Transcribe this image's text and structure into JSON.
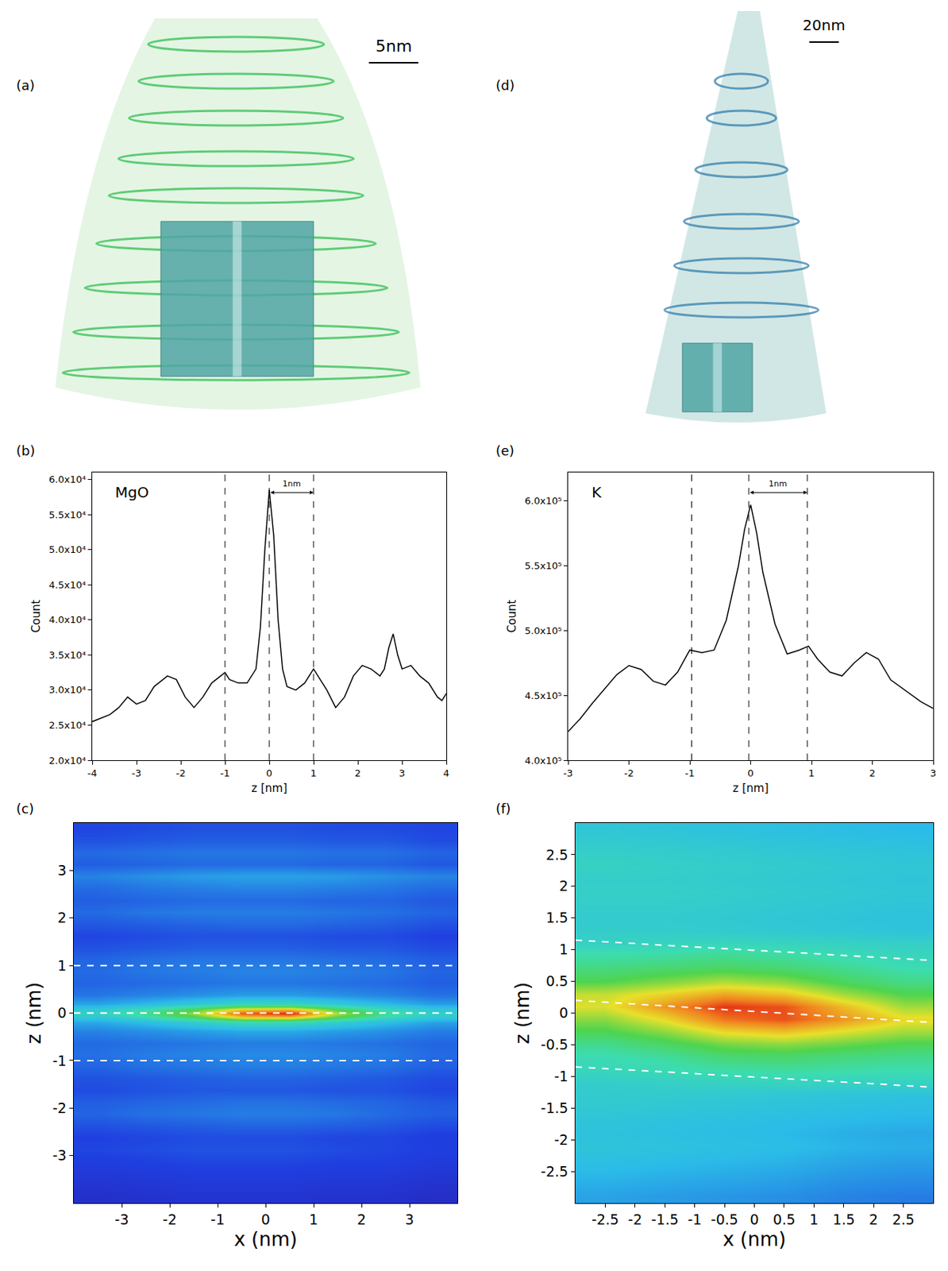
{
  "reconstructions": [
    {
      "label": "(a)",
      "scale_bar": "5nm"
    },
    {
      "label": "(d)",
      "scale_bar": "20nm"
    }
  ],
  "chart_data": [
    {
      "type": "line",
      "label": "(b)",
      "annotation": "MgO",
      "color": "#000000",
      "xlabel": "z [nm]",
      "ylabel": "Count",
      "x": [
        -4,
        -3.8,
        -3.6,
        -3.4,
        -3.2,
        -3.0,
        -2.8,
        -2.6,
        -2.5,
        -2.3,
        -2.1,
        -1.9,
        -1.7,
        -1.5,
        -1.3,
        -1.1,
        -1.0,
        -0.9,
        -0.7,
        -0.5,
        -0.3,
        -0.2,
        -0.1,
        0,
        0.1,
        0.2,
        0.3,
        0.4,
        0.6,
        0.8,
        1.0,
        1.1,
        1.3,
        1.5,
        1.7,
        1.9,
        2.1,
        2.3,
        2.5,
        2.6,
        2.7,
        2.8,
        2.9,
        3.0,
        3.2,
        3.4,
        3.6,
        3.8,
        3.9,
        4.0
      ],
      "values": [
        25500,
        26000,
        26500,
        27500,
        29000,
        28000,
        28500,
        30500,
        31000,
        32000,
        31500,
        29000,
        27500,
        29000,
        31000,
        32000,
        32500,
        31500,
        31000,
        31000,
        33000,
        39000,
        50000,
        58500,
        52000,
        40000,
        33000,
        30500,
        30000,
        31000,
        33000,
        32000,
        30000,
        27500,
        29000,
        32000,
        33500,
        33000,
        32000,
        33000,
        36000,
        38000,
        35000,
        33000,
        33500,
        32000,
        31000,
        29000,
        28500,
        29500
      ],
      "xlim": [
        -4,
        4
      ],
      "ylim": [
        20000,
        61000
      ],
      "xticks": [
        -4,
        -3,
        -2,
        -1,
        0,
        1,
        2,
        3,
        4
      ],
      "yticks": [
        {
          "value": 20000,
          "label": "2.0x10⁴"
        },
        {
          "value": 25000,
          "label": "2.5x10⁴"
        },
        {
          "value": 30000,
          "label": "3.0x10⁴"
        },
        {
          "value": 35000,
          "label": "3.5x10⁴"
        },
        {
          "value": 40000,
          "label": "4.0x10⁴"
        },
        {
          "value": 45000,
          "label": "4.5x10⁴"
        },
        {
          "value": 50000,
          "label": "5.0x10⁴"
        },
        {
          "value": 55000,
          "label": "5.5x10⁴"
        },
        {
          "value": 60000,
          "label": "6.0x10⁴"
        }
      ],
      "vlines": [
        -1,
        0,
        1
      ],
      "bracket": {
        "from": 0,
        "to": 1,
        "label": "1nm"
      }
    },
    {
      "type": "line",
      "label": "(e)",
      "annotation": "K",
      "color": "#000000",
      "xlabel": "z [nm]",
      "ylabel": "Count",
      "x": [
        -3,
        -2.8,
        -2.6,
        -2.4,
        -2.2,
        -2.0,
        -1.8,
        -1.6,
        -1.4,
        -1.2,
        -1.0,
        -0.8,
        -0.6,
        -0.4,
        -0.2,
        -0.1,
        0,
        0.1,
        0.2,
        0.4,
        0.6,
        0.8,
        0.95,
        1.1,
        1.3,
        1.5,
        1.7,
        1.9,
        2.1,
        2.3,
        2.6,
        2.8,
        3.0
      ],
      "values": [
        422000,
        432000,
        444000,
        455000,
        466000,
        473000,
        470000,
        461000,
        458000,
        468000,
        485000,
        483000,
        485000,
        508000,
        550000,
        578000,
        597000,
        575000,
        545000,
        505000,
        482000,
        485000,
        488000,
        478000,
        468000,
        465000,
        475000,
        483000,
        478000,
        462000,
        452000,
        445000,
        440000
      ],
      "xlim": [
        -3,
        3
      ],
      "ylim": [
        400000,
        622000
      ],
      "xticks": [
        -3,
        -2,
        -1,
        0,
        1,
        2,
        3
      ],
      "yticks": [
        {
          "value": 400000,
          "label": "4.0x10⁵"
        },
        {
          "value": 450000,
          "label": "4.5x10⁵"
        },
        {
          "value": 500000,
          "label": "5.0x10⁵"
        },
        {
          "value": 550000,
          "label": "5.5x10⁵"
        },
        {
          "value": 600000,
          "label": "6.0x10⁵"
        }
      ],
      "vlines": [
        -0.97,
        -0.03,
        0.93
      ],
      "bracket": {
        "from": -0.03,
        "to": 0.93,
        "label": "1nm"
      }
    },
    {
      "type": "heatmap",
      "label": "(c)",
      "xlabel": "x (nm)",
      "ylabel": "z (nm)",
      "x": [
        -3.5,
        -2.5,
        -1.5,
        -0.5,
        0.5,
        1.5,
        2.5,
        3.5
      ],
      "y": [
        -3.875,
        -3.625,
        -3.375,
        -3.125,
        -2.875,
        -2.625,
        -2.375,
        -2.125,
        -1.875,
        -1.625,
        -1.375,
        -1.125,
        -0.875,
        -0.625,
        -0.375,
        -0.2,
        -0.08,
        0,
        0.08,
        0.2,
        0.375,
        0.625,
        0.875,
        1.125,
        1.375,
        1.625,
        1.875,
        2.125,
        2.375,
        2.625,
        2.875,
        3.125,
        3.375,
        3.625,
        3.875
      ],
      "cells": [
        [
          0.08,
          0.09,
          0.1,
          0.1,
          0.1,
          0.09,
          0.09,
          0.07
        ],
        [
          0.1,
          0.11,
          0.12,
          0.12,
          0.12,
          0.11,
          0.11,
          0.09
        ],
        [
          0.12,
          0.13,
          0.14,
          0.14,
          0.14,
          0.13,
          0.13,
          0.11
        ],
        [
          0.14,
          0.15,
          0.16,
          0.16,
          0.16,
          0.15,
          0.15,
          0.13
        ],
        [
          0.16,
          0.17,
          0.18,
          0.18,
          0.18,
          0.17,
          0.16,
          0.15
        ],
        [
          0.15,
          0.16,
          0.17,
          0.17,
          0.17,
          0.16,
          0.16,
          0.14
        ],
        [
          0.18,
          0.19,
          0.2,
          0.21,
          0.21,
          0.2,
          0.19,
          0.17
        ],
        [
          0.21,
          0.23,
          0.24,
          0.25,
          0.25,
          0.24,
          0.22,
          0.2
        ],
        [
          0.2,
          0.21,
          0.22,
          0.23,
          0.23,
          0.22,
          0.21,
          0.19
        ],
        [
          0.17,
          0.18,
          0.19,
          0.19,
          0.19,
          0.18,
          0.18,
          0.16
        ],
        [
          0.18,
          0.19,
          0.2,
          0.21,
          0.21,
          0.2,
          0.19,
          0.17
        ],
        [
          0.21,
          0.23,
          0.24,
          0.25,
          0.25,
          0.24,
          0.23,
          0.2
        ],
        [
          0.23,
          0.25,
          0.26,
          0.27,
          0.27,
          0.26,
          0.25,
          0.22
        ],
        [
          0.22,
          0.23,
          0.24,
          0.25,
          0.25,
          0.24,
          0.23,
          0.21
        ],
        [
          0.26,
          0.28,
          0.3,
          0.32,
          0.32,
          0.3,
          0.28,
          0.25
        ],
        [
          0.32,
          0.36,
          0.42,
          0.48,
          0.48,
          0.42,
          0.36,
          0.31
        ],
        [
          0.4,
          0.48,
          0.6,
          0.78,
          0.8,
          0.62,
          0.48,
          0.4
        ],
        [
          0.44,
          0.54,
          0.68,
          0.92,
          0.98,
          0.7,
          0.54,
          0.43
        ],
        [
          0.4,
          0.48,
          0.6,
          0.76,
          0.78,
          0.6,
          0.47,
          0.39
        ],
        [
          0.31,
          0.35,
          0.4,
          0.46,
          0.46,
          0.4,
          0.35,
          0.3
        ],
        [
          0.24,
          0.26,
          0.28,
          0.3,
          0.3,
          0.28,
          0.26,
          0.23
        ],
        [
          0.21,
          0.22,
          0.23,
          0.24,
          0.24,
          0.23,
          0.22,
          0.2
        ],
        [
          0.22,
          0.24,
          0.25,
          0.26,
          0.26,
          0.25,
          0.24,
          0.21
        ],
        [
          0.21,
          0.23,
          0.24,
          0.24,
          0.24,
          0.23,
          0.22,
          0.2
        ],
        [
          0.18,
          0.19,
          0.2,
          0.2,
          0.2,
          0.19,
          0.19,
          0.17
        ],
        [
          0.16,
          0.17,
          0.18,
          0.18,
          0.18,
          0.17,
          0.17,
          0.15
        ],
        [
          0.19,
          0.2,
          0.21,
          0.22,
          0.22,
          0.21,
          0.2,
          0.18
        ],
        [
          0.22,
          0.24,
          0.25,
          0.25,
          0.25,
          0.24,
          0.23,
          0.21
        ],
        [
          0.2,
          0.21,
          0.22,
          0.22,
          0.22,
          0.21,
          0.21,
          0.19
        ],
        [
          0.22,
          0.24,
          0.25,
          0.26,
          0.26,
          0.25,
          0.24,
          0.22
        ],
        [
          0.26,
          0.28,
          0.3,
          0.31,
          0.31,
          0.3,
          0.28,
          0.26
        ],
        [
          0.2,
          0.21,
          0.22,
          0.22,
          0.22,
          0.21,
          0.21,
          0.19
        ],
        [
          0.22,
          0.23,
          0.24,
          0.24,
          0.24,
          0.23,
          0.23,
          0.21
        ],
        [
          0.18,
          0.19,
          0.2,
          0.2,
          0.2,
          0.19,
          0.19,
          0.17
        ],
        [
          0.16,
          0.17,
          0.18,
          0.18,
          0.18,
          0.17,
          0.17,
          0.16
        ]
      ],
      "zlim": [
        0,
        1
      ],
      "xlim": [
        -4,
        4
      ],
      "ylim": [
        -4,
        4
      ],
      "xticks": [
        -3,
        -2,
        -1,
        0,
        1,
        2,
        3
      ],
      "yticks": [
        -3,
        -2,
        -1,
        0,
        1,
        2,
        3
      ],
      "hlines": [
        1,
        0,
        -1
      ]
    },
    {
      "type": "heatmap",
      "label": "(f)",
      "xlabel": "x (nm)",
      "ylabel": "z (nm)",
      "x": [
        -2.5,
        -1.5,
        -0.5,
        0.5,
        1.5,
        2.5
      ],
      "y": [
        -2.9,
        -2.7,
        -2.5,
        -2.3,
        -2.1,
        -1.9,
        -1.7,
        -1.5,
        -1.3,
        -1.1,
        -0.9,
        -0.7,
        -0.5,
        -0.3,
        -0.1,
        0.1,
        0.3,
        0.5,
        0.7,
        0.9,
        1.1,
        1.3,
        1.5,
        1.7,
        1.9,
        2.1,
        2.3,
        2.5,
        2.7,
        2.9
      ],
      "cells": [
        [
          0.31,
          0.3,
          0.29,
          0.28,
          0.26,
          0.25
        ],
        [
          0.33,
          0.32,
          0.31,
          0.3,
          0.28,
          0.27
        ],
        [
          0.35,
          0.34,
          0.33,
          0.32,
          0.3,
          0.29
        ],
        [
          0.37,
          0.36,
          0.35,
          0.34,
          0.32,
          0.31
        ],
        [
          0.39,
          0.38,
          0.37,
          0.36,
          0.34,
          0.33
        ],
        [
          0.38,
          0.37,
          0.36,
          0.35,
          0.33,
          0.32
        ],
        [
          0.39,
          0.38,
          0.37,
          0.36,
          0.35,
          0.34
        ],
        [
          0.41,
          0.4,
          0.39,
          0.38,
          0.37,
          0.36
        ],
        [
          0.42,
          0.42,
          0.41,
          0.4,
          0.39,
          0.38
        ],
        [
          0.43,
          0.44,
          0.45,
          0.46,
          0.45,
          0.45
        ],
        [
          0.47,
          0.49,
          0.51,
          0.52,
          0.51,
          0.5
        ],
        [
          0.49,
          0.52,
          0.57,
          0.58,
          0.56,
          0.54
        ],
        [
          0.54,
          0.59,
          0.65,
          0.67,
          0.64,
          0.61
        ],
        [
          0.61,
          0.67,
          0.76,
          0.79,
          0.74,
          0.69
        ],
        [
          0.67,
          0.76,
          0.89,
          0.93,
          0.85,
          0.76
        ],
        [
          0.74,
          0.85,
          0.96,
          0.93,
          0.8,
          0.69
        ],
        [
          0.72,
          0.77,
          0.83,
          0.79,
          0.69,
          0.62
        ],
        [
          0.62,
          0.66,
          0.7,
          0.67,
          0.6,
          0.55
        ],
        [
          0.56,
          0.58,
          0.6,
          0.58,
          0.54,
          0.5
        ],
        [
          0.51,
          0.52,
          0.54,
          0.52,
          0.49,
          0.47
        ],
        [
          0.45,
          0.46,
          0.47,
          0.46,
          0.45,
          0.44
        ],
        [
          0.43,
          0.43,
          0.42,
          0.41,
          0.4,
          0.39
        ],
        [
          0.42,
          0.42,
          0.41,
          0.4,
          0.39,
          0.38
        ],
        [
          0.43,
          0.43,
          0.42,
          0.41,
          0.4,
          0.39
        ],
        [
          0.44,
          0.44,
          0.43,
          0.42,
          0.41,
          0.4
        ],
        [
          0.43,
          0.43,
          0.42,
          0.41,
          0.4,
          0.39
        ],
        [
          0.45,
          0.44,
          0.43,
          0.42,
          0.41,
          0.4
        ],
        [
          0.44,
          0.43,
          0.42,
          0.41,
          0.4,
          0.39
        ],
        [
          0.42,
          0.41,
          0.4,
          0.39,
          0.38,
          0.37
        ],
        [
          0.4,
          0.39,
          0.38,
          0.37,
          0.36,
          0.35
        ]
      ],
      "zlim": [
        0,
        1
      ],
      "xlim": [
        -3,
        3
      ],
      "ylim": [
        -3,
        3
      ],
      "xticks": [
        -2.5,
        -2,
        -1.5,
        -1,
        -0.5,
        0,
        0.5,
        1,
        1.5,
        2,
        2.5
      ],
      "yticks": [
        -2.5,
        -2,
        -1.5,
        -1,
        -0.5,
        0,
        0.5,
        1,
        1.5,
        2,
        2.5
      ],
      "lines": [
        {
          "x": [
            -3,
            3
          ],
          "y": [
            1.15,
            0.83
          ]
        },
        {
          "x": [
            -3,
            3
          ],
          "y": [
            0.2,
            -0.15
          ]
        },
        {
          "x": [
            -3,
            3
          ],
          "y": [
            -0.85,
            -1.17
          ]
        }
      ]
    }
  ]
}
